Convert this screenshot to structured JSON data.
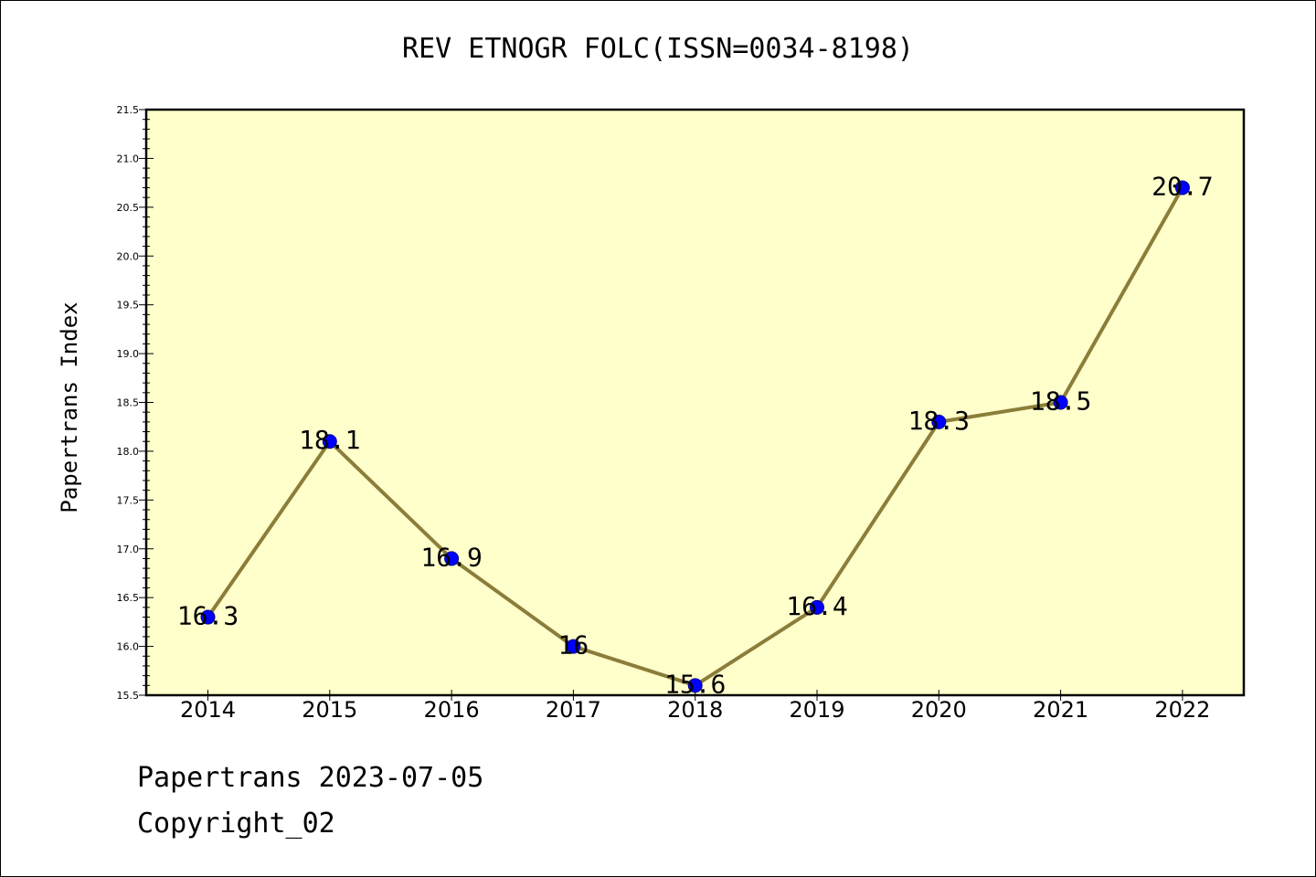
{
  "chart_data": {
    "type": "line",
    "title": "REV ETNOGR FOLC(ISSN=0034-8198)",
    "xlabel": "",
    "ylabel": "Papertrans Index",
    "categories": [
      "2014",
      "2015",
      "2016",
      "2017",
      "2018",
      "2019",
      "2020",
      "2021",
      "2022"
    ],
    "series": [
      {
        "values": [
          16.3,
          18.1,
          16.9,
          16.0,
          15.6,
          16.4,
          18.3,
          18.5,
          20.7
        ],
        "data_labels": [
          "16.3",
          "18.1",
          "16.9",
          "16",
          "15.6",
          "16.4",
          "18.3",
          "18.5",
          "20.7"
        ]
      }
    ],
    "ylim": [
      15.5,
      21.5
    ],
    "yticks": [
      "15.5",
      "16.0",
      "16.5",
      "17.0",
      "17.5",
      "18.0",
      "18.5",
      "19.0",
      "19.5",
      "20.0",
      "20.5",
      "21.0",
      "21.5"
    ],
    "grid": false,
    "colors": {
      "plot_background": "#ffffcc",
      "line": "#8b7d3a",
      "marker": "#0000ff",
      "marker_edge": "#00008b"
    }
  },
  "footer": {
    "line1": "Papertrans 2023-07-05",
    "line2": "Copyright_02"
  }
}
